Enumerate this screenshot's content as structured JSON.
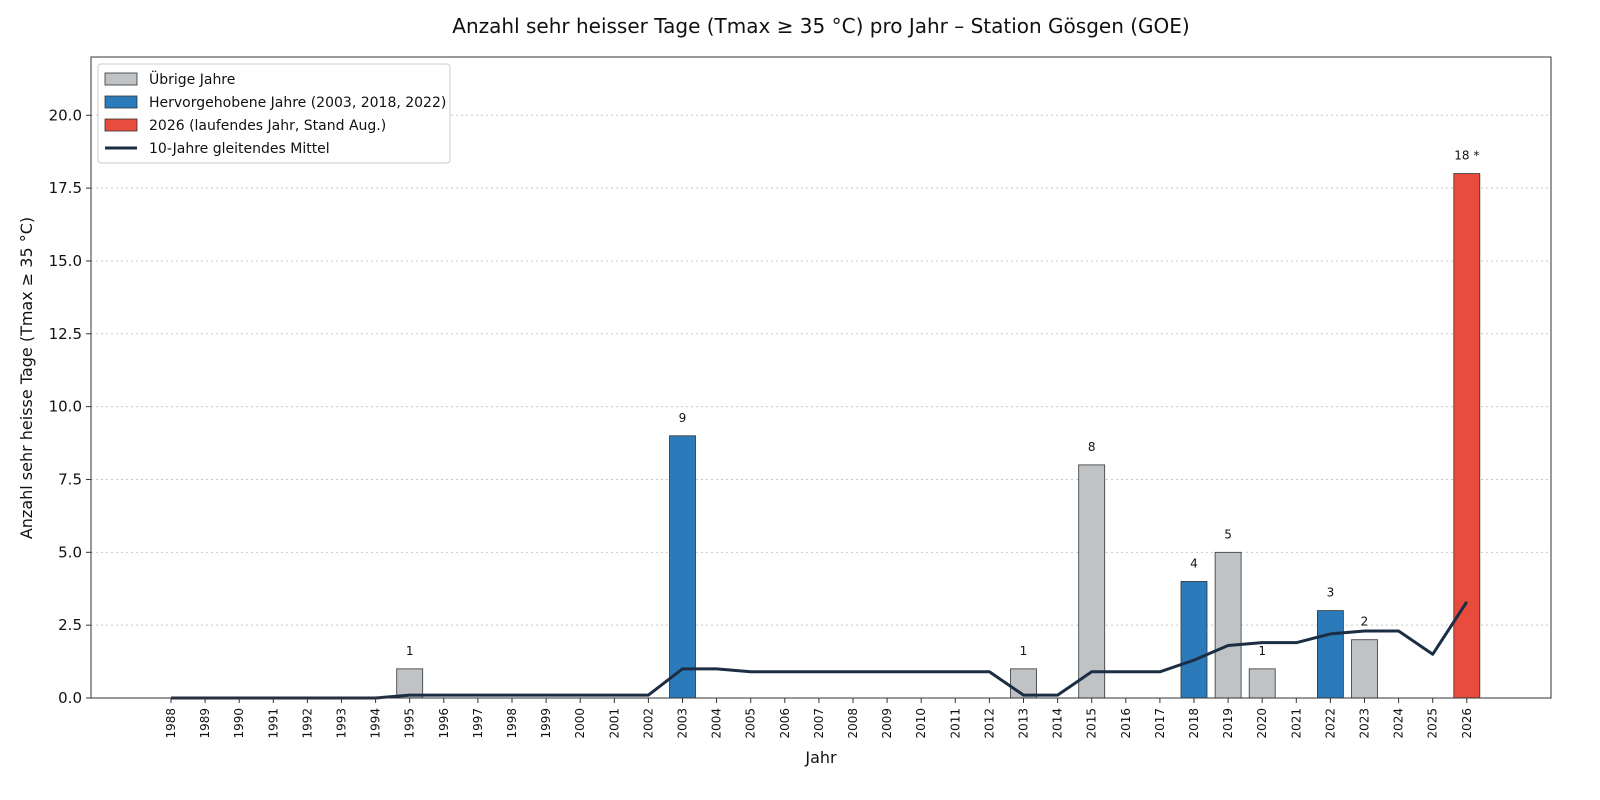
{
  "chart_data": {
    "type": "bar",
    "title": "Anzahl sehr heisser Tage (Tmax ≥ 35 °C) pro Jahr – Station Gösgen (GOE)",
    "xlabel": "Jahr",
    "ylabel": "Anzahl sehr heisse Tage (Tmax ≥ 35 °C)",
    "ylim": [
      0,
      22
    ],
    "yticks": [
      "0.0",
      "2.5",
      "5.0",
      "7.5",
      "10.0",
      "12.5",
      "15.0",
      "17.5",
      "20.0"
    ],
    "grid": "horizontal dotted",
    "legend_position": "top-left",
    "categories": [
      "1988",
      "1989",
      "1990",
      "1991",
      "1992",
      "1993",
      "1994",
      "1995",
      "1996",
      "1997",
      "1998",
      "1999",
      "2000",
      "2001",
      "2002",
      "2003",
      "2004",
      "2005",
      "2006",
      "2007",
      "2008",
      "2009",
      "2010",
      "2011",
      "2012",
      "2013",
      "2014",
      "2015",
      "2016",
      "2017",
      "2018",
      "2019",
      "2020",
      "2021",
      "2022",
      "2023",
      "2024",
      "2025",
      "2026"
    ],
    "values": [
      0,
      0,
      0,
      0,
      0,
      0,
      0,
      1,
      0,
      0,
      0,
      0,
      0,
      0,
      0,
      9,
      0,
      0,
      0,
      0,
      0,
      0,
      0,
      0,
      0,
      1,
      0,
      8,
      0,
      0,
      4,
      5,
      1,
      0,
      3,
      2,
      0,
      0,
      18
    ],
    "bar_group": [
      "other",
      "other",
      "other",
      "other",
      "other",
      "other",
      "other",
      "other",
      "other",
      "other",
      "other",
      "other",
      "other",
      "other",
      "other",
      "highlight",
      "other",
      "other",
      "other",
      "other",
      "other",
      "other",
      "other",
      "other",
      "other",
      "other",
      "other",
      "other",
      "other",
      "other",
      "highlight",
      "other",
      "other",
      "other",
      "highlight",
      "other",
      "other",
      "other",
      "current"
    ],
    "value_labels": [
      "",
      "",
      "",
      "",
      "",
      "",
      "",
      "1",
      "",
      "",
      "",
      "",
      "",
      "",
      "",
      "9",
      "",
      "",
      "",
      "",
      "",
      "",
      "",
      "",
      "",
      "1",
      "",
      "8",
      "",
      "",
      "4",
      "5",
      "1",
      "",
      "3",
      "2",
      "",
      "",
      "18 *"
    ],
    "moving_average": {
      "name": "10-Jahre gleitendes Mittel",
      "values": [
        0,
        0,
        0,
        0,
        0,
        0,
        0,
        0.1,
        0.1,
        0.1,
        0.1,
        0.1,
        0.1,
        0.1,
        0.1,
        1.0,
        1.0,
        0.9,
        0.9,
        0.9,
        0.9,
        0.9,
        0.9,
        0.9,
        0.9,
        0.1,
        0.1,
        0.9,
        0.9,
        0.9,
        1.3,
        1.8,
        1.9,
        1.9,
        2.2,
        2.3,
        2.3,
        1.5,
        3.3
      ]
    },
    "legend": [
      {
        "label": "Übrige Jahre",
        "kind": "patch",
        "group": "other"
      },
      {
        "label": "Hervorgehobene Jahre (2003, 2018, 2022)",
        "kind": "patch",
        "group": "highlight"
      },
      {
        "label": "2026 (laufendes Jahr, Stand Aug.)",
        "kind": "patch",
        "group": "current"
      },
      {
        "label": "10-Jahre gleitendes Mittel",
        "kind": "line",
        "group": "ma"
      }
    ],
    "colors": {
      "other": "#bfc3c6",
      "highlight": "#2b7bba",
      "current": "#e74c3c",
      "ma": "#1c2e44"
    }
  }
}
